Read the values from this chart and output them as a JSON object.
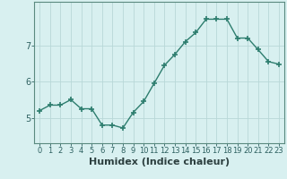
{
  "x": [
    0,
    1,
    2,
    3,
    4,
    5,
    6,
    7,
    8,
    9,
    10,
    11,
    12,
    13,
    14,
    15,
    16,
    17,
    18,
    19,
    20,
    21,
    22,
    23
  ],
  "y": [
    5.2,
    5.35,
    5.35,
    5.5,
    5.25,
    5.25,
    4.8,
    4.8,
    4.72,
    5.15,
    5.45,
    5.95,
    6.45,
    6.75,
    7.1,
    7.35,
    7.72,
    7.72,
    7.72,
    7.2,
    7.2,
    6.88,
    6.55,
    6.48
  ],
  "line_color": "#2d7d6e",
  "marker": "+",
  "marker_size": 4,
  "marker_linewidth": 1.2,
  "line_width": 1.0,
  "bg_color": "#d8f0f0",
  "grid_color": "#b8d8d8",
  "xlabel": "Humidex (Indice chaleur)",
  "xlabel_fontsize": 8,
  "tick_fontsize": 6,
  "yticks": [
    5,
    6,
    7
  ],
  "ylim": [
    4.3,
    8.2
  ],
  "xlim": [
    -0.5,
    23.5
  ]
}
